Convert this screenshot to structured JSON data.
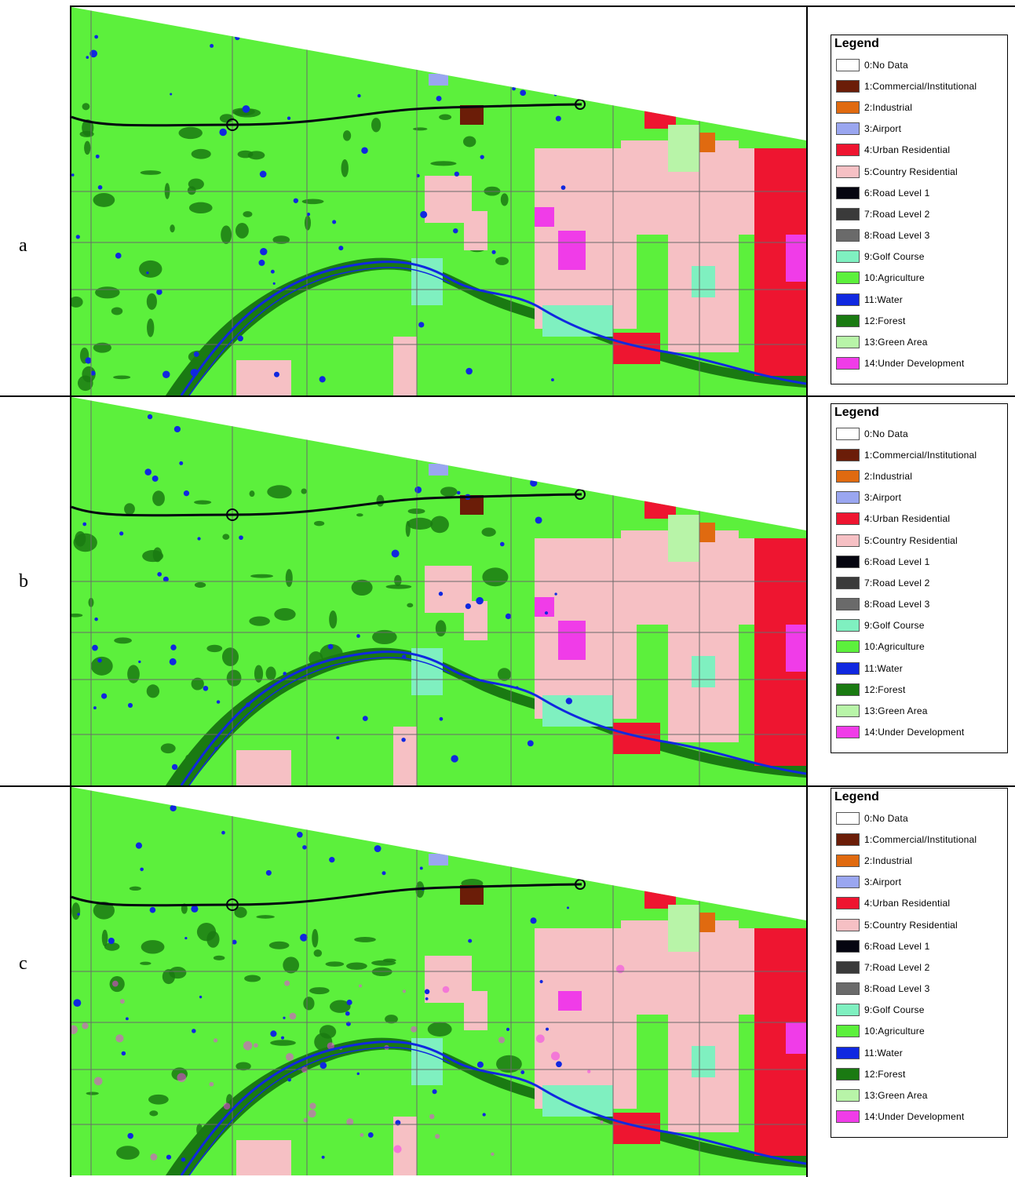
{
  "panels": [
    {
      "label": "a",
      "variant": 0
    },
    {
      "label": "b",
      "variant": 1
    },
    {
      "label": "c",
      "variant": 2
    }
  ],
  "legend": {
    "title": "Legend",
    "items": [
      {
        "label": "0:No Data",
        "color": "#ffffff"
      },
      {
        "label": "1:Commercial/Institutional",
        "color": "#6b1d08"
      },
      {
        "label": "2:Industrial",
        "color": "#e06a10"
      },
      {
        "label": "3:Airport",
        "color": "#9aa6f0"
      },
      {
        "label": "4:Urban Residential",
        "color": "#ee1530"
      },
      {
        "label": "5:Country Residential",
        "color": "#f6c0c4"
      },
      {
        "label": "6:Road Level 1",
        "color": "#050510"
      },
      {
        "label": "7:Road Level 2",
        "color": "#3a3a3a"
      },
      {
        "label": "8:Road Level 3",
        "color": "#6a6a6a"
      },
      {
        "label": "9:Golf Course",
        "color": "#7ff0c0"
      },
      {
        "label": "10:Agriculture",
        "color": "#5cf03c"
      },
      {
        "label": "11:Water",
        "color": "#1028e0"
      },
      {
        "label": "12:Forest",
        "color": "#1a7a12"
      },
      {
        "label": "13:Green Area",
        "color": "#b8f4a8"
      },
      {
        "label": "14:Under Development",
        "color": "#f03ce8"
      }
    ]
  }
}
